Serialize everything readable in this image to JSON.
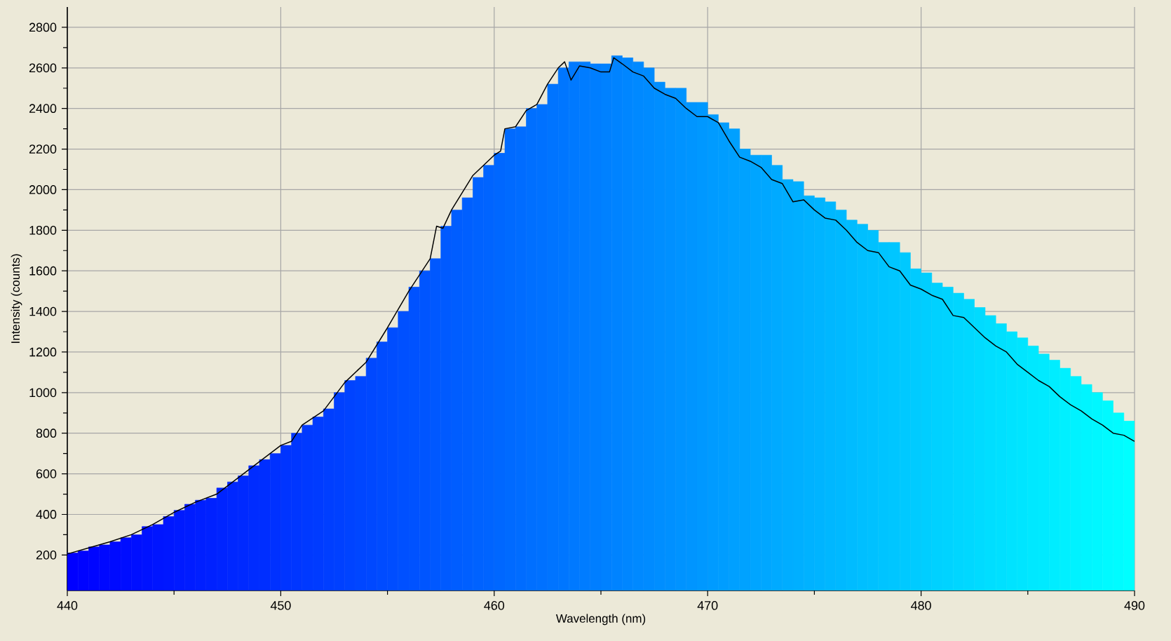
{
  "chart_data": {
    "type": "bar",
    "xlabel": "Wavelength (nm)",
    "ylabel": "Intensity (counts)",
    "xlim": [
      440,
      490
    ],
    "ylim": [
      25,
      2900
    ],
    "xticks": [
      440,
      450,
      460,
      470,
      480,
      490
    ],
    "yticks": [
      200,
      400,
      600,
      800,
      1000,
      1200,
      1400,
      1600,
      1800,
      2000,
      2200,
      2400,
      2600,
      2800
    ],
    "grid": true,
    "series": [
      {
        "type": "bar",
        "x": [
          440.25,
          440.75,
          441.25,
          441.75,
          442.25,
          442.75,
          443.25,
          443.75,
          444.25,
          444.75,
          445.25,
          445.75,
          446.25,
          446.75,
          447.25,
          447.75,
          448.25,
          448.75,
          449.25,
          449.75,
          450.25,
          450.75,
          451.25,
          451.75,
          452.25,
          452.75,
          453.25,
          453.75,
          454.25,
          454.75,
          455.25,
          455.75,
          456.25,
          456.75,
          457.25,
          457.75,
          458.25,
          458.75,
          459.25,
          459.75,
          460.25,
          460.75,
          461.25,
          461.75,
          462.25,
          462.75,
          463.25,
          463.75,
          464.25,
          464.75,
          465.25,
          465.75,
          466.25,
          466.75,
          467.25,
          467.75,
          468.25,
          468.75,
          469.25,
          469.75,
          470.25,
          470.75,
          471.25,
          471.75,
          472.25,
          472.75,
          473.25,
          473.75,
          474.25,
          474.75,
          475.25,
          475.75,
          476.25,
          476.75,
          477.25,
          477.75,
          478.25,
          478.75,
          479.25,
          479.75,
          480.25,
          480.75,
          481.25,
          481.75,
          482.25,
          482.75,
          483.25,
          483.75,
          484.25,
          484.75,
          485.25,
          485.75,
          486.25,
          486.75,
          487.25,
          487.75,
          488.25,
          488.75,
          489.25,
          489.75
        ],
        "values": [
          210,
          220,
          240,
          250,
          265,
          285,
          300,
          340,
          350,
          390,
          420,
          450,
          470,
          480,
          530,
          560,
          590,
          640,
          670,
          700,
          740,
          800,
          840,
          880,
          920,
          1000,
          1060,
          1080,
          1170,
          1250,
          1320,
          1400,
          1520,
          1600,
          1660,
          1820,
          1900,
          1960,
          2060,
          2120,
          2180,
          2300,
          2310,
          2400,
          2420,
          2520,
          2600,
          2630,
          2630,
          2620,
          2620,
          2660,
          2650,
          2630,
          2600,
          2530,
          2500,
          2500,
          2430,
          2430,
          2370,
          2330,
          2300,
          2200,
          2170,
          2170,
          2120,
          2050,
          2040,
          1970,
          1960,
          1940,
          1900,
          1850,
          1830,
          1800,
          1740,
          1740,
          1690,
          1610,
          1590,
          1540,
          1520,
          1490,
          1460,
          1420,
          1380,
          1340,
          1300,
          1270,
          1230,
          1190,
          1160,
          1120,
          1080,
          1040,
          1000,
          960,
          900,
          860
        ],
        "colors": [
          "#0000ff",
          "#0003ff",
          "#0005ff",
          "#0008ff",
          "#000aff",
          "#000dff",
          "#000fff",
          "#0012ff",
          "#0015ff",
          "#0017ff",
          "#001aff",
          "#001cff",
          "#001fff",
          "#0021ff",
          "#0024ff",
          "#0027ff",
          "#0029ff",
          "#002cff",
          "#002eff",
          "#0031ff",
          "#0034ff",
          "#0036ff",
          "#0039ff",
          "#003bff",
          "#003eff",
          "#0040ff",
          "#0043ff",
          "#0046ff",
          "#0048ff",
          "#004bff",
          "#004dff",
          "#0050ff",
          "#0052ff",
          "#0055ff",
          "#0058ff",
          "#005aff",
          "#005dff",
          "#005fff",
          "#0062ff",
          "#0064ff",
          "#0067ff",
          "#006aff",
          "#006cff",
          "#006fff",
          "#0071ff",
          "#0074ff",
          "#0076ff",
          "#0079ff",
          "#007cff",
          "#007eff",
          "#0081ff",
          "#0083ff",
          "#0086ff",
          "#0089ff",
          "#008bff",
          "#008eff",
          "#0090ff",
          "#0093ff",
          "#0095ff",
          "#0098ff",
          "#009bff",
          "#009dff",
          "#00a0ff",
          "#00a2ff",
          "#00a5ff",
          "#00a7ff",
          "#00aaff",
          "#00adff",
          "#00afff",
          "#00b2ff",
          "#00b4ff",
          "#00b7ff",
          "#00b9ff",
          "#00bcff",
          "#00bfff",
          "#00c1ff",
          "#00c4ff",
          "#00c6ff",
          "#00c9ff",
          "#00cbff",
          "#00ceff",
          "#00d1ff",
          "#00d3ff",
          "#00d6ff",
          "#00d8ff",
          "#00dbff",
          "#00deff",
          "#00e0ff",
          "#00e3ff",
          "#00e5ff",
          "#00e8ff",
          "#00eaff",
          "#00edff",
          "#00f0ff",
          "#00f2ff",
          "#00f5ff",
          "#00f7ff",
          "#00faff",
          "#00fcff",
          "#00ffff"
        ]
      },
      {
        "type": "line",
        "color": "#000000",
        "x": [
          440,
          441,
          442,
          443,
          444,
          445,
          446,
          447,
          448,
          449,
          450,
          450.5,
          451,
          452,
          453,
          454,
          455,
          456,
          457,
          457.3,
          457.6,
          458,
          459,
          460,
          460.3,
          460.5,
          461,
          461.5,
          462,
          462.5,
          463,
          463.3,
          463.6,
          464,
          464.5,
          465,
          465.4,
          465.6,
          466,
          466.5,
          467,
          467.5,
          468,
          468.5,
          469,
          469.5,
          470,
          470.5,
          471,
          471.5,
          472,
          472.5,
          473,
          473.5,
          474,
          474.5,
          475,
          475.5,
          476,
          476.5,
          477,
          477.5,
          478,
          478.5,
          479,
          479.5,
          480,
          480.5,
          481,
          481.5,
          482,
          482.5,
          483,
          483.5,
          484,
          484.5,
          485,
          485.5,
          486,
          486.5,
          487,
          487.5,
          488,
          488.5,
          489,
          489.5,
          490
        ],
        "values": [
          205,
          235,
          265,
          300,
          350,
          410,
          460,
          500,
          580,
          660,
          740,
          760,
          840,
          910,
          1050,
          1150,
          1320,
          1500,
          1660,
          1820,
          1810,
          1900,
          2070,
          2170,
          2190,
          2300,
          2310,
          2390,
          2420,
          2520,
          2600,
          2630,
          2540,
          2610,
          2600,
          2580,
          2580,
          2650,
          2620,
          2580,
          2560,
          2500,
          2470,
          2450,
          2400,
          2360,
          2360,
          2330,
          2240,
          2160,
          2140,
          2110,
          2050,
          2030,
          1940,
          1950,
          1900,
          1860,
          1850,
          1800,
          1740,
          1700,
          1690,
          1620,
          1600,
          1530,
          1510,
          1480,
          1460,
          1380,
          1370,
          1320,
          1270,
          1230,
          1200,
          1140,
          1100,
          1060,
          1030,
          980,
          940,
          910,
          870,
          840,
          800,
          790,
          760
        ]
      }
    ]
  }
}
